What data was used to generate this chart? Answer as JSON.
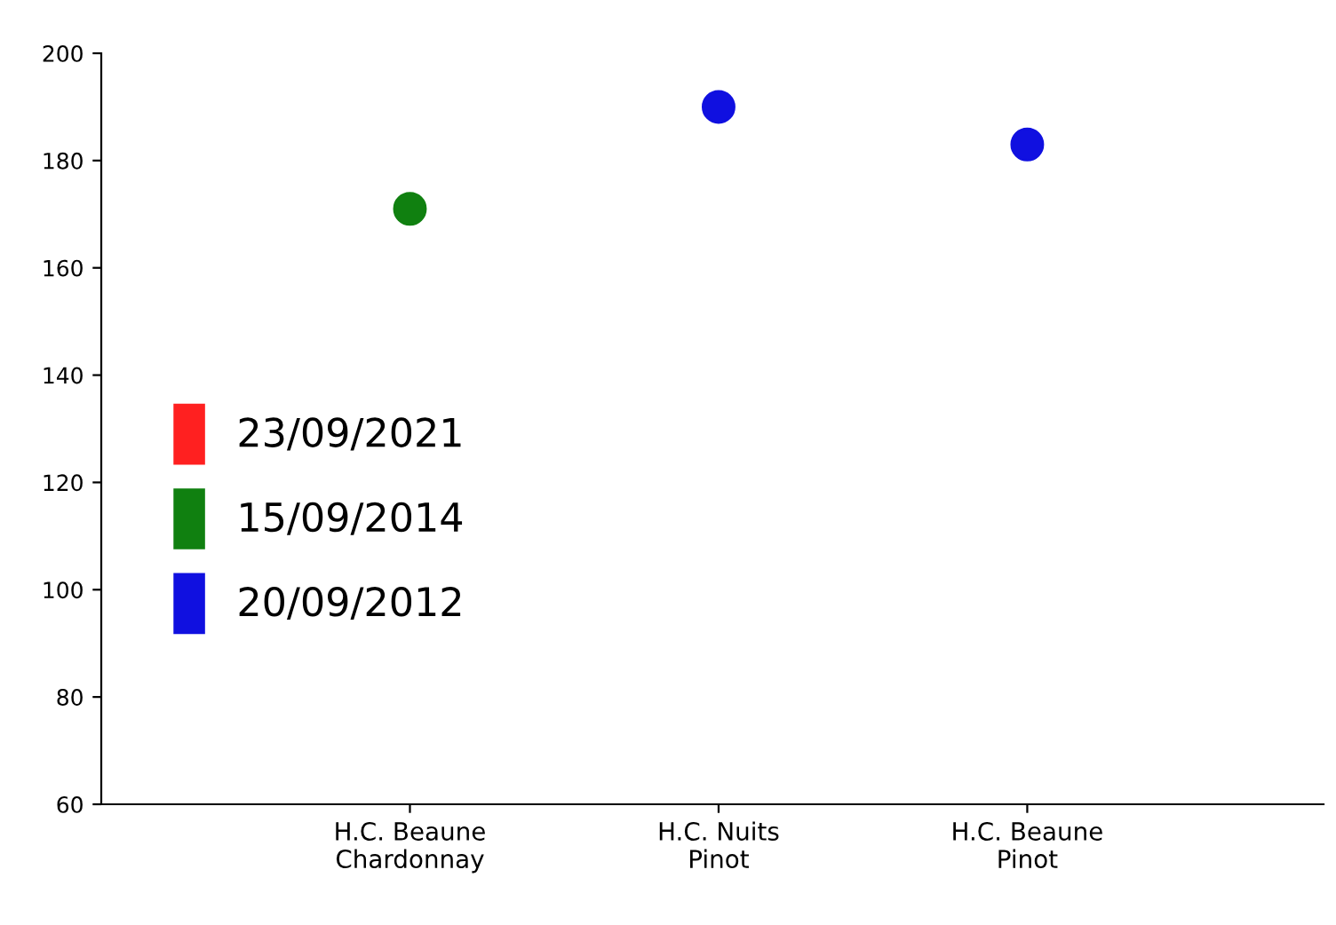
{
  "chart_data": {
    "type": "scatter",
    "categories": [
      "H.C. Beaune\nChardonnay",
      "H.C. Nuits\nPinot",
      "H.C. Beaune\nPinot"
    ],
    "series": [
      {
        "name": "23/09/2021",
        "color": "#ff2020",
        "values": [
          null,
          null,
          null
        ]
      },
      {
        "name": "15/09/2014",
        "color": "#108010",
        "values": [
          171,
          null,
          null
        ]
      },
      {
        "name": "20/09/2012",
        "color": "#1010e0",
        "values": [
          null,
          190,
          183
        ]
      }
    ],
    "ylim": [
      60,
      200
    ],
    "yticks": [
      60,
      80,
      100,
      120,
      140,
      160,
      180,
      200
    ],
    "grid": false,
    "legend": "left",
    "marker": "circle"
  }
}
